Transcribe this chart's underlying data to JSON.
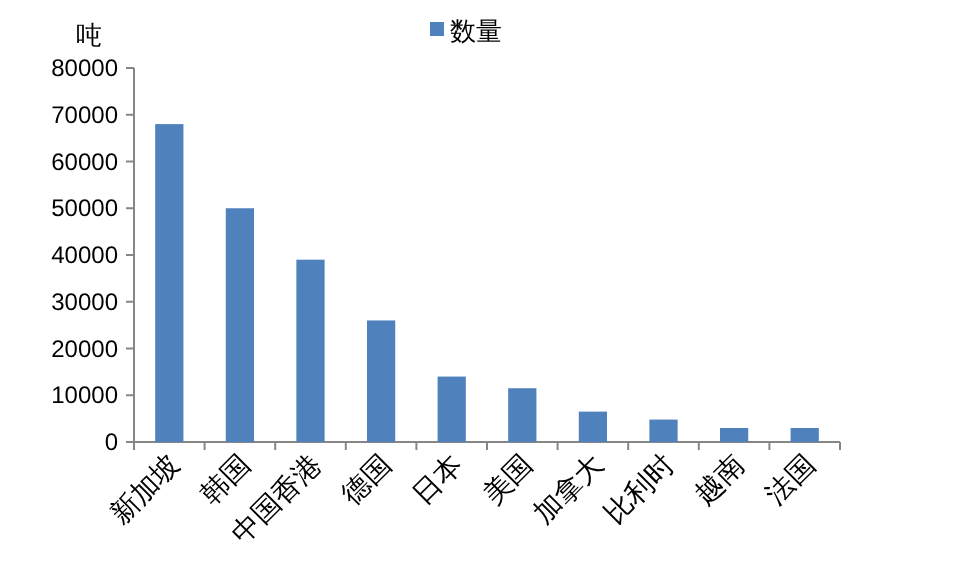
{
  "chart_data": {
    "type": "bar",
    "ylabel": "吨",
    "categories": [
      "新加坡",
      "韩国",
      "中国香港",
      "德国",
      "日本",
      "美国",
      "加拿大",
      "比利时",
      "越南",
      "法国"
    ],
    "series": [
      {
        "name": "数量",
        "color": "#4f81bd",
        "values": [
          68000,
          50000,
          39000,
          26000,
          14000,
          11500,
          6500,
          4800,
          3000,
          3000
        ]
      }
    ],
    "ylim": [
      0,
      80000
    ],
    "yticks": [
      0,
      10000,
      20000,
      30000,
      40000,
      50000,
      60000,
      70000,
      80000
    ],
    "legend": "top",
    "grid": false
  }
}
